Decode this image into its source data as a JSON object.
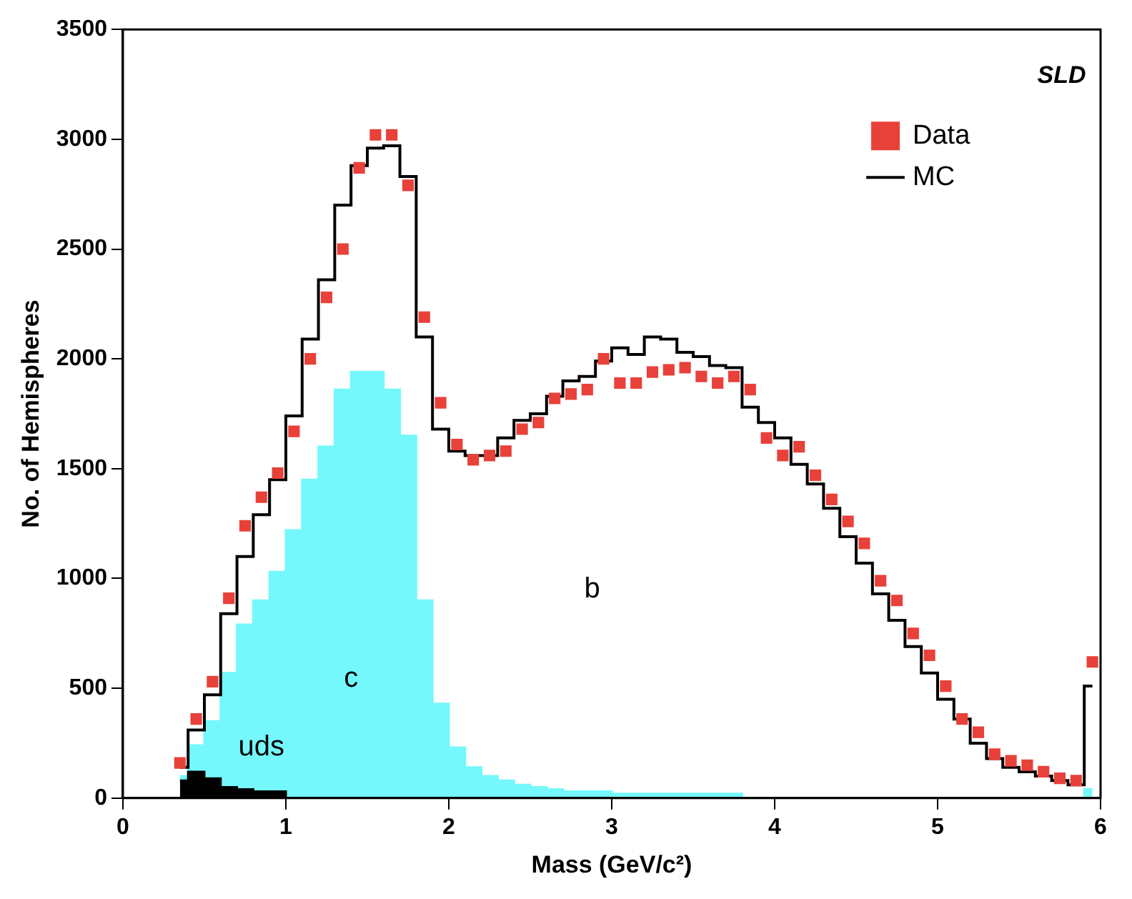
{
  "chart_data": {
    "type": "step",
    "xlabel": "Mass (GeV/c²)",
    "ylabel": "No. of Hemispheres",
    "x": [
      0.35,
      0.45,
      0.55,
      0.65,
      0.75,
      0.85,
      0.95,
      1.05,
      1.15,
      1.25,
      1.35,
      1.45,
      1.55,
      1.65,
      1.75,
      1.85,
      1.95,
      2.05,
      2.15,
      2.25,
      2.35,
      2.45,
      2.55,
      2.65,
      2.75,
      2.85,
      2.95,
      3.05,
      3.15,
      3.25,
      3.35,
      3.45,
      3.55,
      3.65,
      3.75,
      3.85,
      3.95,
      4.05,
      4.15,
      4.25,
      4.35,
      4.45,
      4.55,
      4.65,
      4.75,
      4.85,
      4.95,
      5.05,
      5.15,
      5.25,
      5.35,
      5.45,
      5.55,
      5.65,
      5.75,
      5.85,
      5.95
    ],
    "series": [
      {
        "name": "Data",
        "type": "scatter",
        "marker": "square",
        "color": "#e8413a",
        "values": [
          160,
          360,
          530,
          910,
          1240,
          1370,
          1480,
          1670,
          2000,
          2280,
          2500,
          2870,
          3020,
          3020,
          2790,
          2190,
          1800,
          1610,
          1540,
          1560,
          1580,
          1680,
          1710,
          1820,
          1840,
          1860,
          2000,
          1890,
          1890,
          1940,
          1950,
          1960,
          1920,
          1890,
          1920,
          1860,
          1640,
          1560,
          1600,
          1470,
          1360,
          1260,
          1160,
          990,
          900,
          750,
          650,
          510,
          360,
          300,
          200,
          170,
          150,
          120,
          90,
          80,
          620
        ]
      },
      {
        "name": "MC",
        "color": "#000000",
        "values": [
          140,
          310,
          470,
          840,
          1100,
          1290,
          1450,
          1740,
          2090,
          2360,
          2700,
          2880,
          2960,
          2970,
          2830,
          2100,
          1680,
          1580,
          1560,
          1560,
          1640,
          1720,
          1750,
          1830,
          1900,
          1920,
          1990,
          2050,
          2020,
          2100,
          2090,
          2030,
          2010,
          1970,
          1960,
          1780,
          1710,
          1640,
          1520,
          1430,
          1320,
          1190,
          1070,
          930,
          810,
          690,
          570,
          450,
          360,
          250,
          180,
          140,
          120,
          100,
          80,
          60,
          510
        ]
      },
      {
        "name": "uds",
        "type": "area",
        "color": "#000000",
        "values": [
          80,
          120,
          90,
          50,
          40,
          30,
          30,
          0,
          0,
          0,
          0,
          0,
          0,
          0,
          0,
          0,
          0,
          0,
          0,
          0,
          0,
          0,
          0,
          0,
          0,
          0,
          0,
          0,
          0,
          0,
          0,
          0,
          0,
          0,
          0,
          0,
          0,
          0,
          0,
          0,
          0,
          0,
          0,
          0,
          0,
          0,
          0,
          0,
          0,
          0,
          0,
          0,
          0,
          0,
          0,
          0,
          0
        ]
      },
      {
        "name": "c",
        "type": "area",
        "color": "#74f8fb",
        "values": [
          100,
          240,
          350,
          570,
          790,
          900,
          1030,
          1220,
          1450,
          1600,
          1860,
          1940,
          1940,
          1860,
          1650,
          900,
          430,
          230,
          140,
          100,
          80,
          60,
          50,
          40,
          30,
          30,
          30,
          20,
          20,
          20,
          20,
          20,
          20,
          20,
          20,
          0,
          0,
          0,
          0,
          0,
          0,
          0,
          0,
          0,
          0,
          0,
          0,
          0,
          0,
          0,
          0,
          0,
          0,
          0,
          0,
          0,
          40
        ]
      }
    ],
    "xlim": [
      0,
      6
    ],
    "xticks": [
      0,
      1,
      2,
      3,
      4,
      5,
      6
    ],
    "ylim": [
      0,
      3500
    ],
    "yticks": [
      0,
      500,
      1000,
      1500,
      2000,
      2500,
      3000,
      3500
    ],
    "legend": "top right",
    "grid": false,
    "annotations": [
      "SLD",
      "b"
    ]
  }
}
